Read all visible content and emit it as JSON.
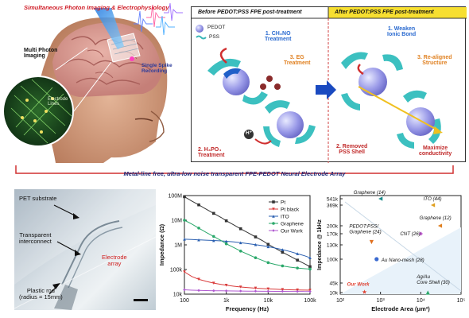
{
  "top": {
    "title": "Simultaneous Photon Imaging & Electrophysiology",
    "multi_photon": "Multi Photon\nImaging",
    "electrode_lines": "Electrode\nLines",
    "single_spike": "Single Spike\nRecording"
  },
  "process": {
    "before_title": "Before PEDOT:PSS FPE post-treatment",
    "after_title": "After PEDOT:PSS FPE post-treatment",
    "legend_pedot": "PEDOT",
    "legend_pss": "PSS",
    "step1": "1. CH₃NO\nTreatment",
    "step2": "2. H₃PO₄\nTreatment",
    "step3": "3. EG\nTreatment",
    "h_ion": "H⁺",
    "after1": "1. Weaken\nIonic Bond",
    "after2": "2. Removed\nPSS Shell",
    "after3": "3. Re-aligned\nStructure",
    "after4": "Maximize\nconductivity"
  },
  "banner": "Metal-line free, ultra-low noise transparent FPE-PEDOT Neural Electrode Array",
  "photo": {
    "pet": "PET substrate",
    "interconnect": "Transparent\ninterconnect",
    "electrode_array": "Electrode\narray",
    "rod": "Plastic rod\n(radius = 15mm)"
  },
  "chart_data": [
    {
      "type": "line",
      "xlabel": "Frequency (Hz)",
      "ylabel": "Impedance (Ω)",
      "xscale": "log",
      "yscale": "log",
      "xlim": [
        100,
        100000
      ],
      "ylim": [
        10000,
        100000000
      ],
      "x_ticks": [
        "100",
        "1k",
        "10k",
        "100k"
      ],
      "y_ticks": [
        "100M",
        "10M",
        "1M",
        "100k",
        "10k"
      ],
      "legend_position": "top-right",
      "x": [
        100,
        150,
        220,
        330,
        500,
        750,
        1000,
        1500,
        2200,
        3300,
        5000,
        7500,
        10000,
        15000,
        22000,
        33000,
        50000,
        75000,
        100000
      ],
      "series": [
        {
          "name": "Pt",
          "color": "#333333",
          "marker": "square",
          "values": [
            90000000,
            60000000,
            42000000,
            28000000,
            19000000,
            13000000,
            9500000,
            6500000,
            4500000,
            3100000,
            2100000,
            1450000,
            1050000,
            720000,
            500000,
            350000,
            240000,
            170000,
            130000
          ]
        },
        {
          "name": "Pt black",
          "color": "#d93a3a",
          "marker": "triangle-down",
          "values": [
            80000,
            52000,
            40000,
            33000,
            28000,
            25000,
            23000,
            21000,
            19500,
            18500,
            17500,
            16800,
            16300,
            15800,
            15400,
            15100,
            14800,
            14600,
            14500
          ]
        },
        {
          "name": "ITO",
          "color": "#2a5fb0",
          "marker": "triangle-up",
          "values": [
            1700000,
            1650000,
            1600000,
            1550000,
            1500000,
            1450000,
            1400000,
            1320000,
            1220000,
            1120000,
            1020000,
            920000,
            840000,
            740000,
            640000,
            540000,
            440000,
            360000,
            300000
          ]
        },
        {
          "name": "Graphene",
          "color": "#2aa86a",
          "marker": "circle",
          "values": [
            10000000,
            7000000,
            4800000,
            3200000,
            2200000,
            1500000,
            1100000,
            780000,
            560000,
            410000,
            300000,
            230000,
            190000,
            160000,
            140000,
            125000,
            115000,
            108000,
            104000
          ]
        },
        {
          "name": "Our Work",
          "color": "#b05ad0",
          "marker": "diamond",
          "values": [
            15000,
            14500,
            14200,
            14000,
            13800,
            13700,
            13600,
            13500,
            13400,
            13300,
            13200,
            13100,
            13100,
            13000,
            13000,
            12900,
            12900,
            12800,
            12800
          ]
        }
      ]
    },
    {
      "type": "scatter",
      "xlabel": "Electrode Area (μm²)",
      "ylabel": "Impedance @ 1kHz",
      "xscale": "log",
      "xlim": [
        100,
        100000
      ],
      "x_ticks": [
        "10²",
        "10³",
        "10⁴",
        "10⁵"
      ],
      "y_ticks": [
        "541k",
        "369k",
        "200k",
        "170k",
        "130k",
        "100k",
        "45k",
        "10k"
      ],
      "y_tick_values": [
        541000,
        369000,
        200000,
        170000,
        130000,
        100000,
        45000,
        10000
      ],
      "points": [
        {
          "label": "Graphene (14)",
          "x": 1000,
          "y": 541000,
          "color": "#1a8a8a",
          "marker": "triangle-left"
        },
        {
          "label": "ITO (44)",
          "x": 20000,
          "y": 369000,
          "color": "#e0a020",
          "marker": "triangle-left"
        },
        {
          "label": "Graphene (12)",
          "x": 30000,
          "y": 200000,
          "color": "#e08020",
          "marker": "triangle-left"
        },
        {
          "label": "CNT (26)",
          "x": 10000,
          "y": 170000,
          "color": "#c060d0",
          "marker": "diamond"
        },
        {
          "label": "PEDOT:PSS/\nGraphene (24)",
          "x": 600,
          "y": 140000,
          "color": "#e07020",
          "marker": "triangle-down"
        },
        {
          "label": "Au Nano-mesh (28)",
          "x": 800,
          "y": 100000,
          "color": "#3a6ad0",
          "marker": "circle"
        },
        {
          "label": "Ag/Au\nCore Shell (30)",
          "x": 15000,
          "y": 10000,
          "color": "#2aa86a",
          "marker": "triangle-up"
        },
        {
          "label": "Our Work",
          "x": 400,
          "y": 12000,
          "color": "#e04030",
          "marker": "star"
        }
      ]
    }
  ]
}
